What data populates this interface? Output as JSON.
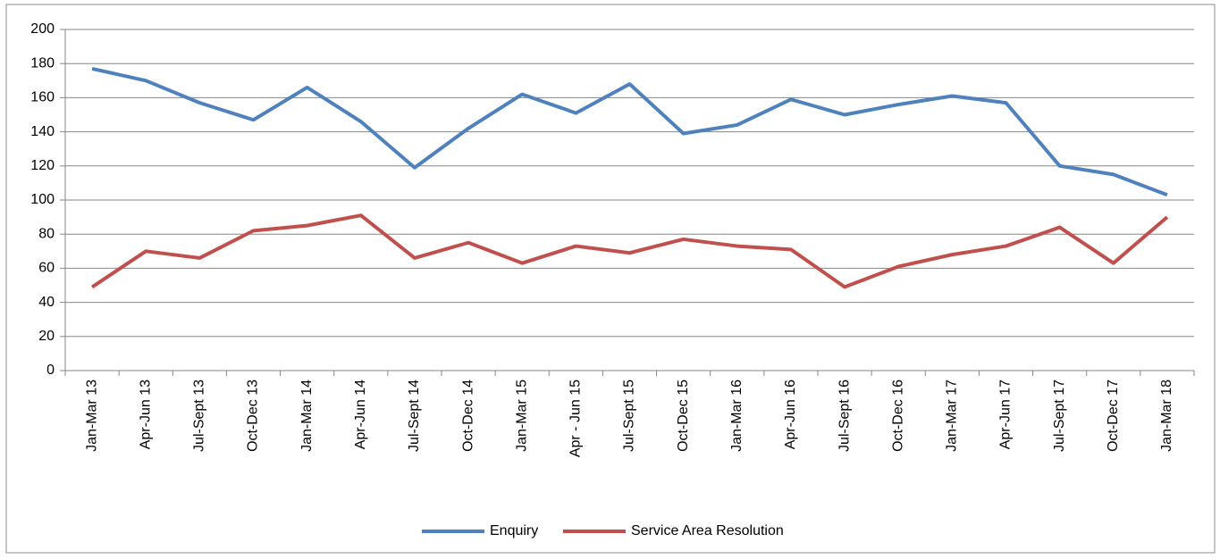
{
  "chart_data": {
    "type": "line",
    "categories": [
      "Jan-Mar 13",
      "Apr-Jun 13",
      "Jul-Sept 13",
      "Oct-Dec 13",
      "Jan-Mar 14",
      "Apr-Jun 14",
      "Jul-Sept 14",
      "Oct-Dec 14",
      "Jan-Mar 15",
      "Apr - Jun 15",
      "Jul-Sept 15",
      "Oct-Dec 15",
      "Jan-Mar 16",
      "Apr-Jun 16",
      "Jul-Sept 16",
      "Oct-Dec 16",
      "Jan-Mar 17",
      "Apr-Jun 17",
      "Jul-Sept 17",
      "Oct-Dec 17",
      "Jan-Mar 18"
    ],
    "series": [
      {
        "name": "Enquiry",
        "color": "#4f81bd",
        "values": [
          177,
          170,
          157,
          147,
          166,
          146,
          119,
          142,
          162,
          151,
          168,
          139,
          144,
          159,
          150,
          156,
          161,
          157,
          120,
          115,
          103
        ]
      },
      {
        "name": "Service Area Resolution",
        "color": "#c0504d",
        "values": [
          49,
          70,
          66,
          82,
          85,
          91,
          66,
          75,
          63,
          73,
          69,
          77,
          73,
          71,
          49,
          61,
          68,
          73,
          84,
          63,
          90
        ]
      }
    ],
    "ylim": [
      0,
      200
    ],
    "yticks": [
      0,
      20,
      40,
      60,
      80,
      100,
      120,
      140,
      160,
      180,
      200
    ],
    "grid": true,
    "legend": "bottom"
  }
}
